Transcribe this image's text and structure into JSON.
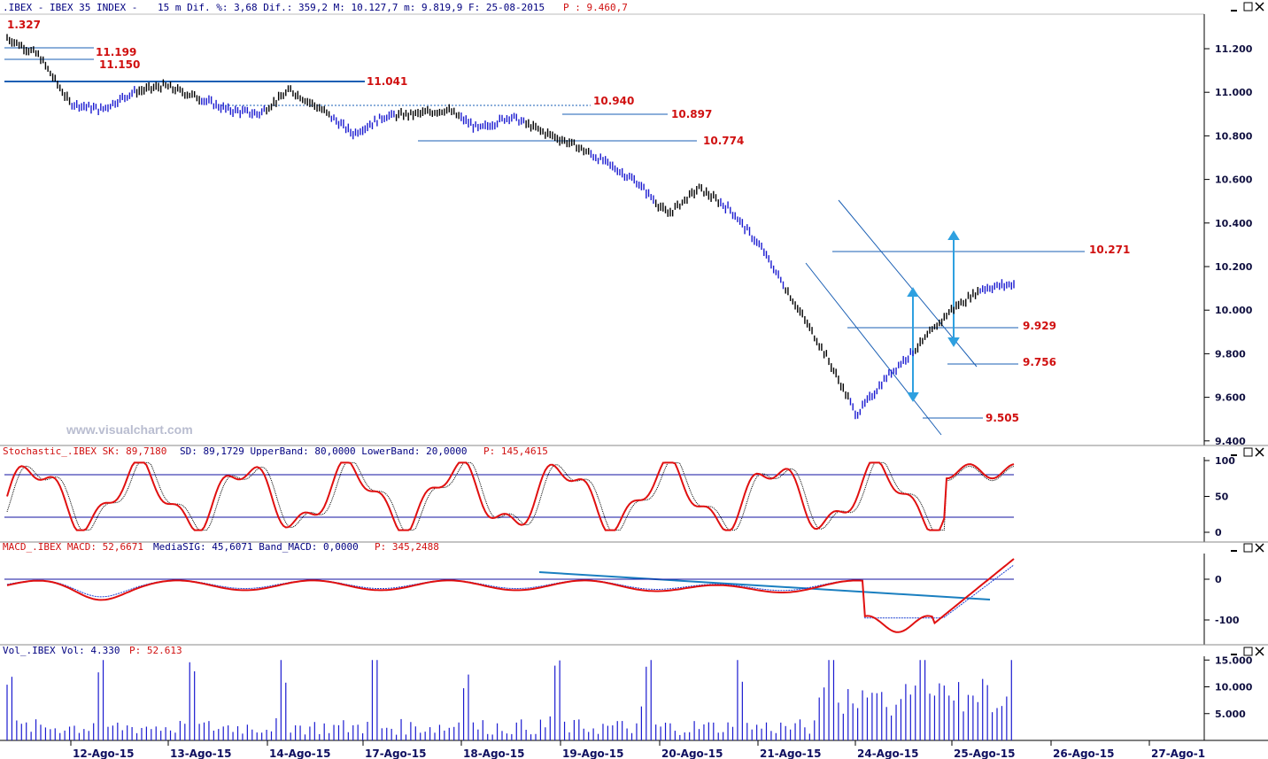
{
  "header": {
    "symbol": ".IBEX - IBEX 35 INDEX -",
    "stats": "15 m Dif. %: 3,68 Dif.: 359,2 M: 10.127,7 m: 9.819,9 F: 25-08-2015",
    "price": "P : 9.460,7"
  },
  "watermark": "www.visualchart.com",
  "price_axis_labels": [
    "11.200",
    "11.000",
    "10.800",
    "10.600",
    "10.400",
    "10.200",
    "10.000",
    "9.800",
    "9.600",
    "9.400"
  ],
  "level_labels": {
    "a": "1.327",
    "b": "11.199",
    "c": "11.150",
    "d": "11.041",
    "e": "10.940",
    "f": "10.897",
    "g": "10.774",
    "h": "10.271",
    "i": "9.929",
    "j": "9.756",
    "k": "9.505"
  },
  "stochastic": {
    "title": "Stochastic_.IBEX SK: 89,7180",
    "info": "SD: 89,1729 UpperBand: 80,0000 LowerBand: 20,0000",
    "p": "P: 145,4615",
    "axis": [
      "100",
      "50",
      "0"
    ]
  },
  "macd": {
    "title": "MACD_.IBEX MACD: 52,6671",
    "info": "MediaSIG: 45,6071 Band_MACD: 0,0000",
    "p": "P: 345,2488",
    "axis": [
      "0",
      "-100"
    ]
  },
  "volume": {
    "title": "Vol_.IBEX Vol: 4.330",
    "p": "P: 52.613",
    "axis": [
      "15.000",
      "10.000",
      "5.000"
    ]
  },
  "dates": [
    "12-Ago-15",
    "13-Ago-15",
    "14-Ago-15",
    "17-Ago-15",
    "18-Ago-15",
    "19-Ago-15",
    "20-Ago-15",
    "21-Ago-15",
    "24-Ago-15",
    "25-Ago-15",
    "26-Ago-15",
    "27-Ago-1"
  ],
  "window_buttons": [
    "minimize-button",
    "restore-button",
    "close-button"
  ],
  "chart_data": {
    "type": "line",
    "title": "IBEX 35 INDEX",
    "timeframe": "15 m",
    "y_range": [
      9400,
      11300
    ],
    "price_series": [
      {
        "x": "12-Ago-15",
        "y": 11250
      },
      {
        "x": "12-Ago-15",
        "y": 11170
      },
      {
        "x": "12-Ago-15",
        "y": 10950
      },
      {
        "x": "13-Ago-15",
        "y": 10920
      },
      {
        "x": "13-Ago-15",
        "y": 11000
      },
      {
        "x": "13-Ago-15",
        "y": 11030
      },
      {
        "x": "14-Ago-15",
        "y": 10980
      },
      {
        "x": "14-Ago-15",
        "y": 10920
      },
      {
        "x": "14-Ago-15",
        "y": 10900
      },
      {
        "x": "17-Ago-15",
        "y": 11010
      },
      {
        "x": "17-Ago-15",
        "y": 10920
      },
      {
        "x": "17-Ago-15",
        "y": 10810
      },
      {
        "x": "18-Ago-15",
        "y": 10890
      },
      {
        "x": "18-Ago-15",
        "y": 10900
      },
      {
        "x": "18-Ago-15",
        "y": 10920
      },
      {
        "x": "19-Ago-15",
        "y": 10830
      },
      {
        "x": "19-Ago-15",
        "y": 10890
      },
      {
        "x": "19-Ago-15",
        "y": 10820
      },
      {
        "x": "20-Ago-15",
        "y": 10760
      },
      {
        "x": "20-Ago-15",
        "y": 10680
      },
      {
        "x": "20-Ago-15",
        "y": 10590
      },
      {
        "x": "21-Ago-15",
        "y": 10440
      },
      {
        "x": "21-Ago-15",
        "y": 10560
      },
      {
        "x": "21-Ago-15",
        "y": 10460
      },
      {
        "x": "24-Ago-15",
        "y": 10280
      },
      {
        "x": "24-Ago-15",
        "y": 10040
      },
      {
        "x": "24-Ago-15",
        "y": 9800
      },
      {
        "x": "24-Ago-15",
        "y": 9520
      },
      {
        "x": "24-Ago-15",
        "y": 9700
      },
      {
        "x": "25-Ago-15",
        "y": 9840
      },
      {
        "x": "25-Ago-15",
        "y": 10000
      },
      {
        "x": "25-Ago-15",
        "y": 10100
      },
      {
        "x": "25-Ago-15",
        "y": 10120
      }
    ],
    "levels": [
      11199,
      11150,
      11041,
      10940,
      10897,
      10774,
      10271,
      9929,
      9756,
      9505
    ],
    "stochastic_bands": [
      80,
      20
    ],
    "stochastic_range": [
      0,
      100
    ],
    "macd_range": [
      -140,
      30
    ],
    "volume_range": [
      0,
      15000
    ]
  }
}
